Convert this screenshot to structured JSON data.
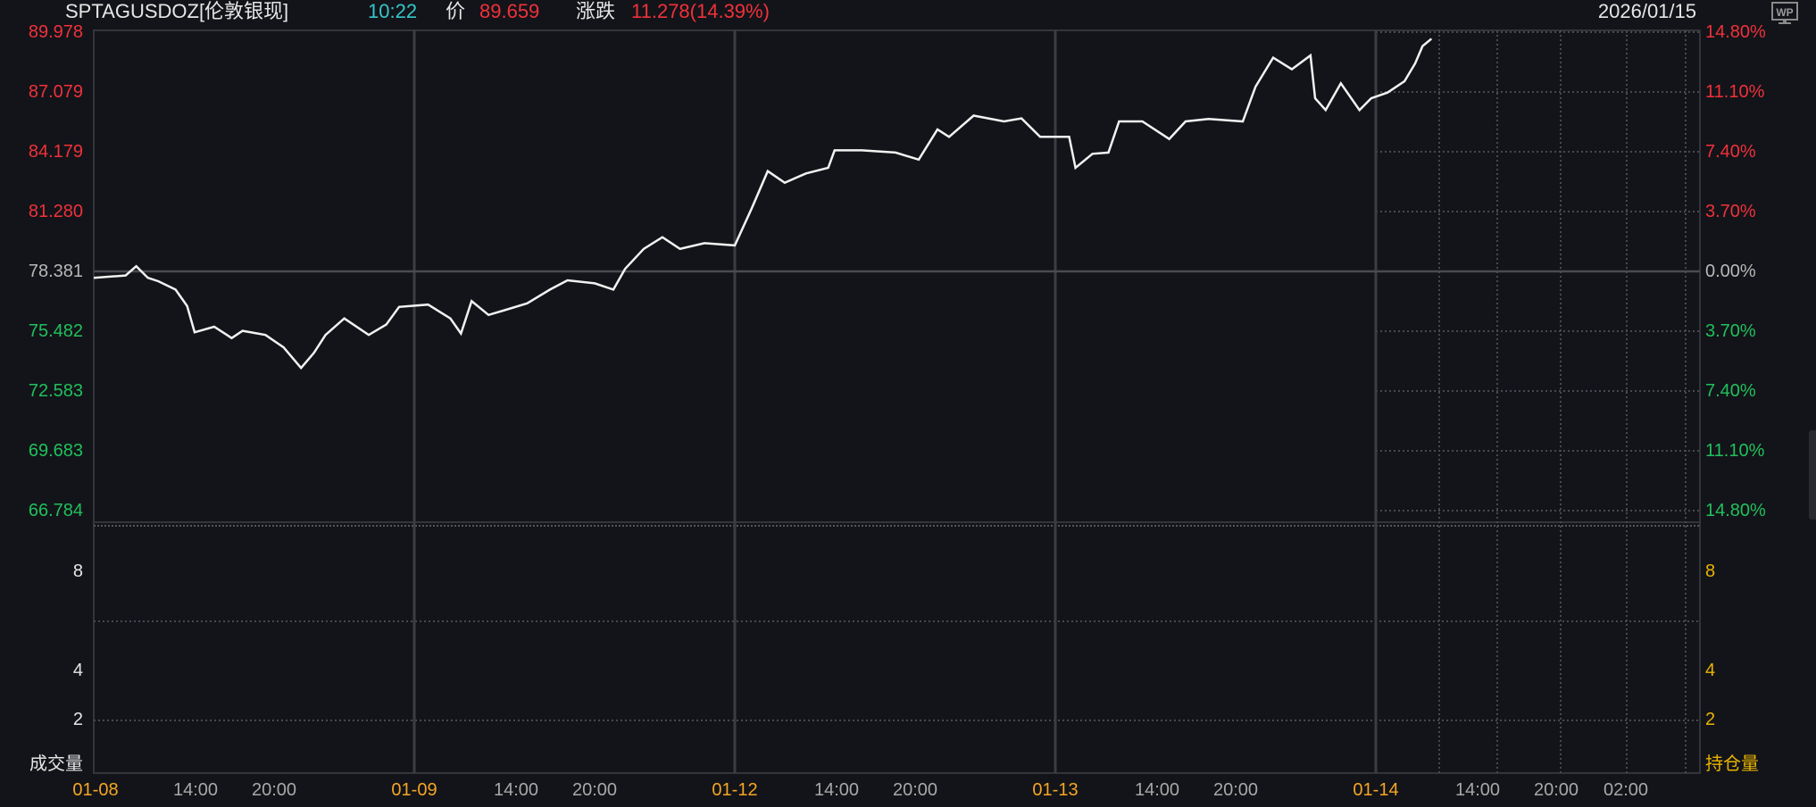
{
  "header": {
    "symbol": "SPTAGUSDOZ[伦敦银现]",
    "time": "10:22",
    "price_label": "价",
    "price": "89.659",
    "change_label": "涨跌",
    "change": "11.278(14.39%)",
    "date": "2026/01/15",
    "wp_icon_text": "WP"
  },
  "colors": {
    "up": "#f0313a",
    "down": "#20c05c",
    "neutral": "#b8b8b8",
    "time": "#34c7c9",
    "date_tick": "#f5a623",
    "oi": "#e8b400",
    "line": "#f2f2f2",
    "bg": "#131419"
  },
  "chart_data": {
    "type": "line",
    "ylim": [
      66.784,
      89.978
    ],
    "base_price": 78.381,
    "price_ticks": [
      "89.978",
      "87.079",
      "84.179",
      "81.280",
      "78.381",
      "75.482",
      "72.583",
      "69.683",
      "66.784"
    ],
    "pct_ticks": [
      "14.80%",
      "11.10%",
      "7.40%",
      "3.70%",
      "0.00%",
      "3.70%",
      "7.40%",
      "11.10%",
      "14.80%"
    ],
    "x_ticks": [
      {
        "label": "01-08",
        "type": "date"
      },
      {
        "label": "14:00",
        "type": "time"
      },
      {
        "label": "20:00",
        "type": "time"
      },
      {
        "label": "01-09",
        "type": "date"
      },
      {
        "label": "14:00",
        "type": "time"
      },
      {
        "label": "20:00",
        "type": "time"
      },
      {
        "label": "01-12",
        "type": "date"
      },
      {
        "label": "14:00",
        "type": "time"
      },
      {
        "label": "20:00",
        "type": "time"
      },
      {
        "label": "01-13",
        "type": "date"
      },
      {
        "label": "14:00",
        "type": "time"
      },
      {
        "label": "20:00",
        "type": "time"
      },
      {
        "label": "01-14",
        "type": "date"
      },
      {
        "label": "14:00",
        "type": "time"
      },
      {
        "label": "20:00",
        "type": "time"
      },
      {
        "label": "02:00",
        "type": "time"
      }
    ],
    "volume_label": "成交量",
    "volume_ticks": [
      "8",
      "4",
      "2"
    ],
    "oi_label": "持仓量",
    "oi_ticks": [
      "8",
      "4",
      "2"
    ],
    "sessions": [
      "01-08",
      "01-09",
      "01-12",
      "01-13",
      "01-14"
    ],
    "series": [
      {
        "points": [
          [
            "01-08",
            "06:00",
            78.07
          ],
          [
            "01-08",
            "08:30",
            78.18
          ],
          [
            "01-08",
            "09:20",
            78.63
          ],
          [
            "01-08",
            "10:15",
            78.07
          ],
          [
            "01-08",
            "11:05",
            77.9
          ],
          [
            "01-08",
            "12:25",
            77.5
          ],
          [
            "01-08",
            "13:20",
            76.7
          ],
          [
            "01-08",
            "13:55",
            75.43
          ],
          [
            "01-08",
            "15:25",
            75.7
          ],
          [
            "01-08",
            "16:45",
            75.15
          ],
          [
            "01-08",
            "17:35",
            75.5
          ],
          [
            "01-08",
            "19:20",
            75.3
          ],
          [
            "01-08",
            "20:40",
            74.7
          ],
          [
            "01-08",
            "21:55",
            73.7
          ],
          [
            "01-08",
            "22:50",
            74.43
          ],
          [
            "01-08",
            "23:40",
            75.3
          ],
          [
            "01-08",
            "01:00",
            76.1
          ],
          [
            "01-08",
            "02:45",
            75.3
          ],
          [
            "01-08",
            "04:00",
            75.8
          ],
          [
            "01-08",
            "04:55",
            76.66
          ],
          [
            "01-09",
            "07:05",
            76.77
          ],
          [
            "01-09",
            "08:50",
            76.1
          ],
          [
            "01-09",
            "09:40",
            75.37
          ],
          [
            "01-09",
            "10:30",
            76.94
          ],
          [
            "01-09",
            "11:50",
            76.27
          ],
          [
            "01-09",
            "13:05",
            76.5
          ],
          [
            "01-09",
            "14:50",
            76.83
          ],
          [
            "01-09",
            "16:35",
            77.5
          ],
          [
            "01-09",
            "17:55",
            77.95
          ],
          [
            "01-09",
            "20:00",
            77.8
          ],
          [
            "01-09",
            "21:20",
            77.5
          ],
          [
            "01-09",
            "22:10",
            78.5
          ],
          [
            "01-09",
            "23:30",
            79.47
          ],
          [
            "01-09",
            "00:50",
            80.04
          ],
          [
            "01-09",
            "02:05",
            79.47
          ],
          [
            "01-09",
            "03:50",
            79.75
          ],
          [
            "01-12",
            "06:00",
            79.64
          ],
          [
            "01-12",
            "07:20",
            81.44
          ],
          [
            "01-12",
            "08:35",
            83.24
          ],
          [
            "01-12",
            "09:55",
            82.68
          ],
          [
            "01-12",
            "11:35",
            83.13
          ],
          [
            "01-12",
            "13:20",
            83.4
          ],
          [
            "01-12",
            "13:50",
            84.25
          ],
          [
            "01-12",
            "15:55",
            84.25
          ],
          [
            "01-12",
            "18:30",
            84.14
          ],
          [
            "01-12",
            "20:15",
            83.8
          ],
          [
            "01-12",
            "21:35",
            85.26
          ],
          [
            "01-12",
            "22:25",
            84.9
          ],
          [
            "01-12",
            "00:10",
            85.93
          ],
          [
            "01-12",
            "02:20",
            85.65
          ],
          [
            "01-12",
            "03:35",
            85.8
          ],
          [
            "01-12",
            "04:55",
            84.9
          ],
          [
            "01-13",
            "07:05",
            84.9
          ],
          [
            "01-13",
            "07:35",
            83.4
          ],
          [
            "01-13",
            "08:55",
            84.08
          ],
          [
            "01-13",
            "10:10",
            84.14
          ],
          [
            "01-13",
            "11:00",
            85.65
          ],
          [
            "01-13",
            "12:50",
            85.65
          ],
          [
            "01-13",
            "14:55",
            84.8
          ],
          [
            "01-13",
            "16:10",
            85.65
          ],
          [
            "01-13",
            "17:55",
            85.77
          ],
          [
            "01-13",
            "20:30",
            85.65
          ],
          [
            "01-13",
            "21:25",
            87.34
          ],
          [
            "01-13",
            "22:40",
            88.74
          ],
          [
            "01-13",
            "00:00",
            88.18
          ],
          [
            "01-13",
            "01:20",
            88.85
          ],
          [
            "01-13",
            "01:40",
            86.77
          ],
          [
            "01-13",
            "02:25",
            86.2
          ],
          [
            "01-13",
            "03:30",
            87.5
          ],
          [
            "01-13",
            "04:50",
            86.2
          ],
          [
            "01-13",
            "05:40",
            86.77
          ],
          [
            "01-14",
            "06:55",
            87.05
          ],
          [
            "01-14",
            "08:15",
            87.6
          ],
          [
            "01-14",
            "09:05",
            88.46
          ],
          [
            "01-14",
            "09:40",
            89.3
          ],
          [
            "01-14",
            "10:22",
            89.659
          ]
        ]
      }
    ]
  }
}
